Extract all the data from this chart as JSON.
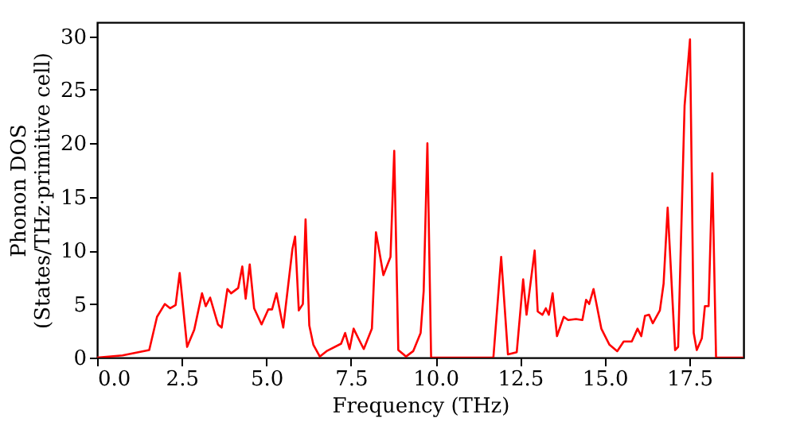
{
  "chart_data": {
    "type": "line",
    "xlabel": "Frequency (THz)",
    "ylabel": "Phonon DOS\n(States/THz·primitive cell)",
    "xlim": [
      0,
      19.1
    ],
    "ylim": [
      0,
      31.3
    ],
    "xticks": [
      {
        "value": 0,
        "label": "0.0"
      },
      2.5,
      {
        "value": 5,
        "label": "5.0"
      },
      7.5,
      {
        "value": 10,
        "label": "10.0"
      },
      12.5,
      {
        "value": 15,
        "label": "15.0"
      },
      17.5
    ],
    "yticks": [
      0,
      5,
      10,
      15,
      20,
      25,
      30
    ],
    "grid": false,
    "legend": false,
    "marker": "none",
    "line_style": "solid",
    "series": [
      {
        "color": "#ff0000",
        "x": [
          0.0,
          0.75,
          1.54,
          1.77,
          2.0,
          2.16,
          2.32,
          2.44,
          2.66,
          2.87,
          3.1,
          3.21,
          3.34,
          3.57,
          3.68,
          3.85,
          3.96,
          4.17,
          4.29,
          4.39,
          4.51,
          4.64,
          4.86,
          5.06,
          5.17,
          5.3,
          5.5,
          5.77,
          5.85,
          5.96,
          6.08,
          6.16,
          6.27,
          6.39,
          6.58,
          6.78,
          7.21,
          7.33,
          7.46,
          7.58,
          7.72,
          7.88,
          8.12,
          8.24,
          8.46,
          8.67,
          8.78,
          8.9,
          9.13,
          9.34,
          9.56,
          9.65,
          9.76,
          9.87,
          11.71,
          11.94,
          12.14,
          12.4,
          12.59,
          12.69,
          12.93,
          13.02,
          13.16,
          13.26,
          13.35,
          13.46,
          13.59,
          13.79,
          13.92,
          14.15,
          14.34,
          14.45,
          14.54,
          14.67,
          14.9,
          15.14,
          15.37,
          15.56,
          15.8,
          15.97,
          16.08,
          16.19,
          16.31,
          16.42,
          16.63,
          16.74,
          16.86,
          17.08,
          17.17,
          17.36,
          17.52,
          17.63,
          17.72,
          17.87,
          17.96,
          18.07,
          18.18,
          18.29,
          19.1
        ],
        "values": [
          0,
          0.2,
          0.7,
          3.8,
          5,
          4.6,
          4.9,
          7.9,
          1,
          2.6,
          6,
          4.8,
          5.6,
          3.1,
          2.8,
          6.4,
          6,
          6.5,
          8.5,
          5.5,
          8.7,
          4.6,
          3.1,
          4.5,
          4.5,
          6,
          2.8,
          10.1,
          11.3,
          4.4,
          5,
          12.9,
          3,
          1.2,
          0.1,
          0.6,
          1.3,
          2.3,
          0.8,
          2.7,
          1.8,
          0.8,
          2.7,
          11.7,
          7.7,
          9.4,
          19.3,
          0.7,
          0.1,
          0.6,
          2.3,
          6.2,
          20,
          0,
          0,
          9.4,
          0.3,
          0.5,
          7.3,
          4,
          10,
          4.3,
          4,
          4.6,
          4,
          6,
          2,
          3.8,
          3.5,
          3.6,
          3.5,
          5.4,
          5,
          6.4,
          2.7,
          1.2,
          0.6,
          1.5,
          1.5,
          2.7,
          2,
          3.9,
          4,
          3.2,
          4.4,
          6.9,
          14,
          0.7,
          1,
          23.5,
          29.7,
          2.3,
          0.7,
          1.8,
          4.8,
          4.8,
          17.2,
          0,
          0
        ]
      }
    ]
  }
}
